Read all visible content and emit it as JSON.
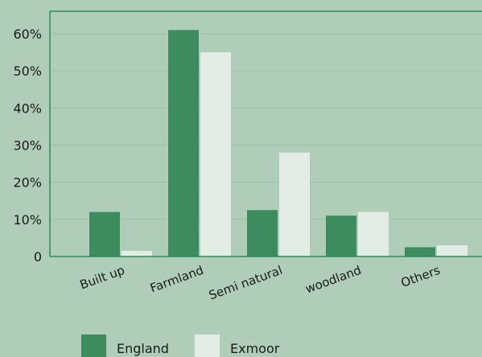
{
  "colors": {
    "background": "#afcdb9",
    "axis": "#2e8b57",
    "gridline": "#9fc2ab",
    "england": "#3c8c5f",
    "exmoor": "#e3ede6"
  },
  "chart_data": {
    "type": "bar",
    "title": "",
    "xlabel": "",
    "ylabel": "",
    "categories": [
      "Built up",
      "Farmland",
      "Semi natural",
      "woodland",
      "Others"
    ],
    "series": [
      {
        "name": "England",
        "color": "#3c8c5f",
        "values": [
          12,
          61,
          12.5,
          11,
          2.5
        ]
      },
      {
        "name": "Exmoor",
        "color": "#e3ede6",
        "values": [
          1.5,
          55,
          28,
          12,
          3
        ]
      }
    ],
    "ylim": [
      0,
      60
    ],
    "yticks": [
      0,
      10,
      20,
      30,
      40,
      50,
      60
    ],
    "ytick_labels": [
      "0",
      "10%",
      "20%",
      "30%",
      "40%",
      "50%",
      "60%"
    ],
    "grid": true,
    "legend_position": "bottom-left"
  }
}
